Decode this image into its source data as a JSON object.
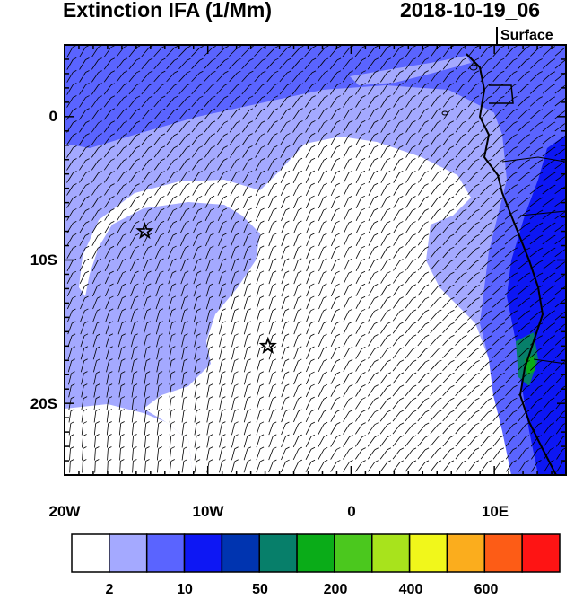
{
  "title": {
    "variable": "Extinction IFA (1/Mm)",
    "datetime": "2018-10-19_06",
    "level": "Surface"
  },
  "axes": {
    "lat_ticks": [
      "0",
      "10S",
      "20S"
    ],
    "lon_ticks": [
      "20W",
      "10W",
      "0",
      "10E"
    ],
    "lon_range": [
      -20,
      15
    ],
    "lat_range": [
      -25,
      5
    ]
  },
  "colorbar": {
    "colors": [
      "#ffffff",
      "#a4a9ff",
      "#5a64ff",
      "#0d17f4",
      "#0034b0",
      "#077f6a",
      "#0aac18",
      "#4bc81e",
      "#a8e31c",
      "#f1f71b",
      "#fbad1d",
      "#fd5c16",
      "#fe1414"
    ],
    "tick_labels": [
      "2",
      "10",
      "50",
      "200",
      "400",
      "600"
    ]
  },
  "markers": [
    {
      "name": "station-star-north",
      "lon": -14.4,
      "lat": -8.0
    },
    {
      "name": "station-star-south",
      "lon": -5.8,
      "lat": -16.0
    }
  ]
}
